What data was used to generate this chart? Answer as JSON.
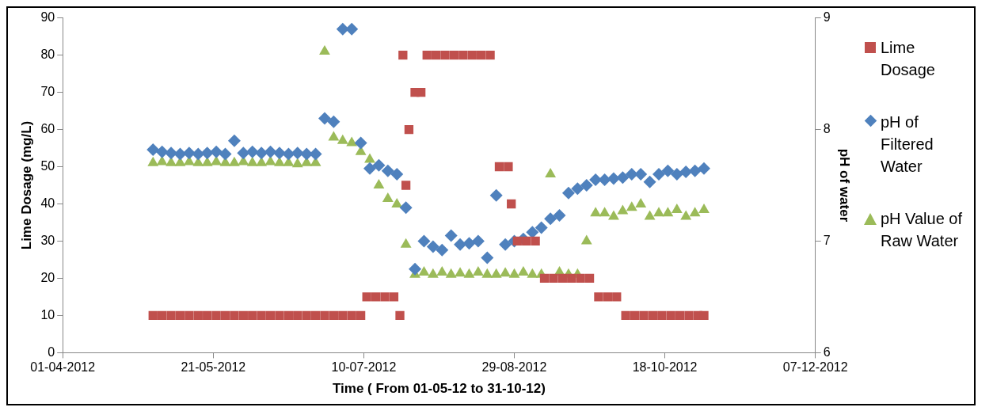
{
  "chart_data": {
    "type": "scatter",
    "xlabel": "Time ( From 01-05-12 to 31-10-12)",
    "ylabel": "Lime Dosage (mg/L)",
    "y2label": "pH of water",
    "x": [
      "2012-05-01",
      "2012-05-04",
      "2012-05-07",
      "2012-05-10",
      "2012-05-13",
      "2012-05-16",
      "2012-05-19",
      "2012-05-22",
      "2012-05-25",
      "2012-05-28",
      "2012-05-31",
      "2012-06-03",
      "2012-06-06",
      "2012-06-09",
      "2012-06-12",
      "2012-06-15",
      "2012-06-18",
      "2012-06-21",
      "2012-06-24",
      "2012-06-27",
      "2012-06-30",
      "2012-07-03",
      "2012-07-06",
      "2012-07-09",
      "2012-07-12",
      "2012-07-15",
      "2012-07-18",
      "2012-07-21",
      "2012-07-24",
      "2012-07-27",
      "2012-07-30",
      "2012-08-02",
      "2012-08-05",
      "2012-08-08",
      "2012-08-11",
      "2012-08-14",
      "2012-08-17",
      "2012-08-20",
      "2012-08-23",
      "2012-08-26",
      "2012-08-29",
      "2012-09-01",
      "2012-09-04",
      "2012-09-07",
      "2012-09-10",
      "2012-09-13",
      "2012-09-16",
      "2012-09-19",
      "2012-09-22",
      "2012-09-25",
      "2012-09-28",
      "2012-10-01",
      "2012-10-04",
      "2012-10-07",
      "2012-10-10",
      "2012-10-13",
      "2012-10-16",
      "2012-10-19",
      "2012-10-22",
      "2012-10-25",
      "2012-10-28",
      "2012-10-31"
    ],
    "series": [
      {
        "name": "Lime Dosage",
        "color": "#c0504d",
        "marker": "square",
        "x": [
          "2012-05-01",
          "2012-05-04",
          "2012-05-07",
          "2012-05-10",
          "2012-05-13",
          "2012-05-16",
          "2012-05-19",
          "2012-05-22",
          "2012-05-25",
          "2012-05-28",
          "2012-05-31",
          "2012-06-03",
          "2012-06-06",
          "2012-06-09",
          "2012-06-12",
          "2012-06-15",
          "2012-06-18",
          "2012-06-21",
          "2012-06-24",
          "2012-06-27",
          "2012-06-30",
          "2012-07-03",
          "2012-07-06",
          "2012-07-09",
          "2012-07-11",
          "2012-07-14",
          "2012-07-17",
          "2012-07-20",
          "2012-07-22",
          "2012-07-23",
          "2012-07-24",
          "2012-07-25",
          "2012-07-27",
          "2012-07-29",
          "2012-07-31",
          "2012-08-03",
          "2012-08-06",
          "2012-08-09",
          "2012-08-12",
          "2012-08-15",
          "2012-08-18",
          "2012-08-21",
          "2012-08-24",
          "2012-08-27",
          "2012-08-28",
          "2012-08-30",
          "2012-09-02",
          "2012-09-05",
          "2012-09-08",
          "2012-09-11",
          "2012-09-14",
          "2012-09-17",
          "2012-09-20",
          "2012-09-23",
          "2012-09-26",
          "2012-09-29",
          "2012-10-02",
          "2012-10-05",
          "2012-10-08",
          "2012-10-11",
          "2012-10-14",
          "2012-10-17",
          "2012-10-20",
          "2012-10-23",
          "2012-10-26",
          "2012-10-29",
          "2012-10-31"
        ],
        "values": [
          10,
          10,
          10,
          10,
          10,
          10,
          10,
          10,
          10,
          10,
          10,
          10,
          10,
          10,
          10,
          10,
          10,
          10,
          10,
          10,
          10,
          10,
          10,
          10,
          15,
          15,
          15,
          15,
          10,
          80,
          45,
          60,
          70,
          70,
          80,
          80,
          80,
          80,
          80,
          80,
          80,
          80,
          50,
          50,
          40,
          30,
          30,
          30,
          20,
          20,
          20,
          20,
          20,
          20,
          15,
          15,
          15,
          10,
          10,
          10,
          10,
          10,
          10,
          10,
          10,
          10,
          10
        ]
      },
      {
        "name": "pH of Filtered Water",
        "color": "#4f81bd",
        "marker": "diamond",
        "axis": "y2",
        "values": [
          7.82,
          7.8,
          7.79,
          7.78,
          7.79,
          7.78,
          7.79,
          7.8,
          7.78,
          7.9,
          7.79,
          7.8,
          7.79,
          7.8,
          7.79,
          7.78,
          7.79,
          7.78,
          7.78,
          8.1,
          8.07,
          8.9,
          8.9,
          7.88,
          7.65,
          7.68,
          7.63,
          7.6,
          7.3,
          6.75,
          7.0,
          6.95,
          6.92,
          7.05,
          6.97,
          6.98,
          7.0,
          6.85,
          7.41,
          6.97,
          7.0,
          7.02,
          7.08,
          7.12,
          7.2,
          7.23,
          7.43,
          7.47,
          7.5,
          7.55,
          7.55,
          7.56,
          7.57,
          7.6,
          7.6,
          7.53,
          7.6,
          7.63,
          7.6,
          7.62,
          7.63,
          7.65
        ]
      },
      {
        "name": "pH Value of Raw Water",
        "color": "#9bbb59",
        "marker": "triangle",
        "axis": "y2",
        "values": [
          7.7,
          7.71,
          7.7,
          7.7,
          7.71,
          7.7,
          7.7,
          7.71,
          7.7,
          7.7,
          7.71,
          7.7,
          7.7,
          7.71,
          7.7,
          7.7,
          7.69,
          7.7,
          7.7,
          8.7,
          7.93,
          7.9,
          7.88,
          7.8,
          7.73,
          7.5,
          7.38,
          7.33,
          6.97,
          6.7,
          6.72,
          6.7,
          6.72,
          6.7,
          6.71,
          6.7,
          6.72,
          6.7,
          6.7,
          6.71,
          6.7,
          6.72,
          6.7,
          6.7,
          7.6,
          6.72,
          6.7,
          6.7,
          7.0,
          7.25,
          7.25,
          7.22,
          7.27,
          7.3,
          7.33,
          7.22,
          7.25,
          7.25,
          7.28,
          7.22,
          7.25,
          7.28
        ]
      }
    ],
    "xlim": [
      "2012-04-01",
      "2012-12-07"
    ],
    "xticks": [
      {
        "value": "2012-04-01",
        "label": "01-04-2012"
      },
      {
        "value": "2012-05-21",
        "label": "21-05-2012"
      },
      {
        "value": "2012-07-10",
        "label": "10-07-2012"
      },
      {
        "value": "2012-08-29",
        "label": "29-08-2012"
      },
      {
        "value": "2012-10-18",
        "label": "18-10-2012"
      },
      {
        "value": "2012-12-07",
        "label": "07-12-2012"
      }
    ],
    "ylim": [
      0,
      90
    ],
    "yticks": [
      0,
      10,
      20,
      30,
      40,
      50,
      60,
      70,
      80,
      90
    ],
    "y2lim": [
      6,
      9
    ],
    "y2ticks": [
      6,
      7,
      8,
      9
    ],
    "grid": false,
    "legend": "right"
  }
}
